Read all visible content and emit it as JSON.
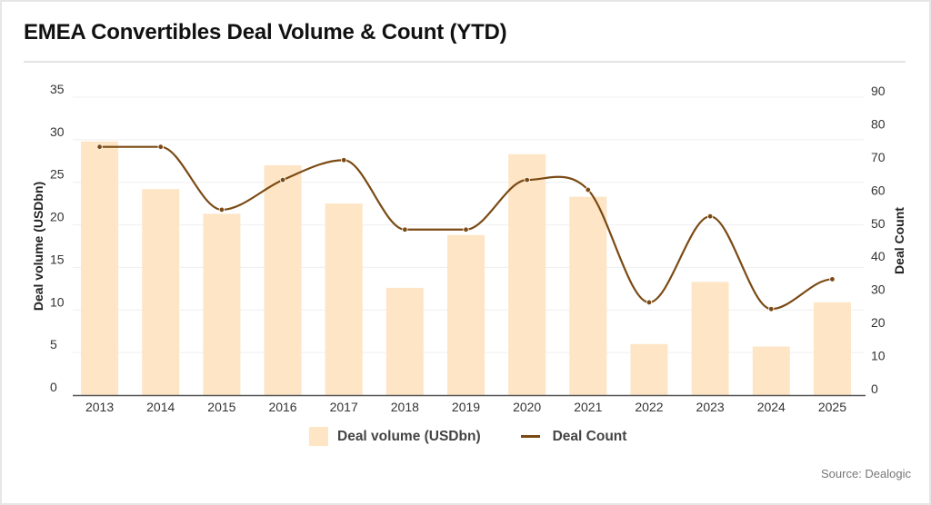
{
  "title": "EMEA Convertibles Deal Volume & Count (YTD)",
  "source": "Source: Dealogic",
  "colors": {
    "bar": "#fde5c5",
    "line": "#7b4a14",
    "grid": "#efefef",
    "axis": "#555555"
  },
  "legend": {
    "volume_label": "Deal volume (USDbn)",
    "count_label": "Deal Count"
  },
  "chart_data": {
    "type": "bar+line",
    "title": "EMEA Convertibles Deal Volume & Count (YTD)",
    "categories": [
      "2013",
      "2014",
      "2015",
      "2016",
      "2017",
      "2018",
      "2019",
      "2020",
      "2021",
      "2022",
      "2023",
      "2024",
      "2025"
    ],
    "series": [
      {
        "name": "Deal volume (USDbn)",
        "type": "bar",
        "axis": "left",
        "values": [
          29.8,
          24.2,
          21.3,
          27.0,
          22.5,
          12.6,
          18.8,
          28.3,
          23.3,
          6.0,
          13.3,
          5.7,
          10.9
        ]
      },
      {
        "name": "Deal Count",
        "type": "line",
        "axis": "right",
        "smooth": true,
        "markers": true,
        "values": [
          75,
          75,
          56,
          65,
          71,
          50,
          50,
          65,
          62,
          28,
          54,
          26,
          35
        ]
      }
    ],
    "ylabel": "Deal volume (USDbn)",
    "y2label": "Deal Count",
    "ylim": [
      0,
      35
    ],
    "y2lim": [
      0,
      90
    ],
    "yticks": [
      0,
      5,
      10,
      15,
      20,
      25,
      30,
      35
    ],
    "y2ticks": [
      0,
      10,
      20,
      30,
      40,
      50,
      60,
      70,
      80,
      90
    ],
    "grid": true,
    "legend_position": "bottom-center"
  }
}
